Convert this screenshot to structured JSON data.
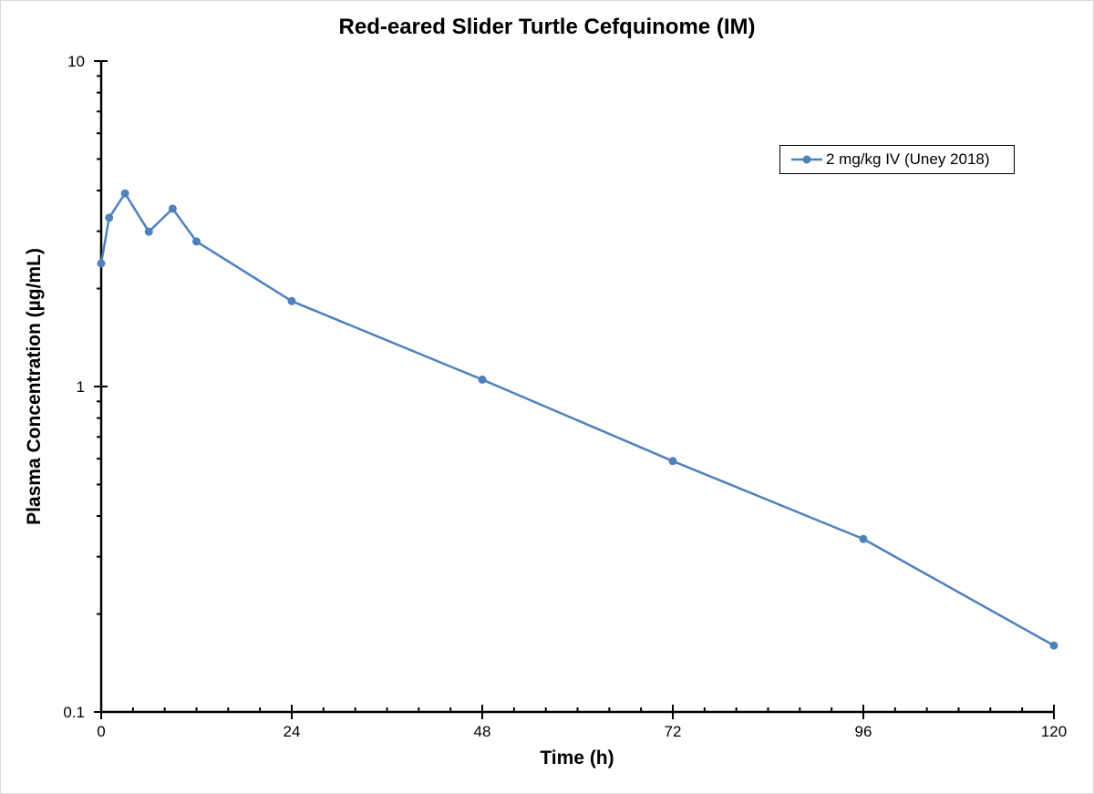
{
  "chart_data": {
    "type": "line",
    "title": "Red-eared Slider Turtle Cefquinome (IM)",
    "xlabel": "Time (h)",
    "ylabel": "Plasma Concentration (µg/mL)",
    "yscale": "log",
    "xlim": [
      0,
      120
    ],
    "ylim": [
      0.1,
      10
    ],
    "xticks": [
      0,
      24,
      48,
      72,
      96,
      120
    ],
    "x_minor_tick_step": 4,
    "yticks": [
      0.1,
      1,
      10
    ],
    "ytick_labels": [
      "0.1",
      "1",
      "10"
    ],
    "grid": false,
    "legend_position": "upper right",
    "series": [
      {
        "name": "2 mg/kg IV (Uney 2018)",
        "color": "#4f81bd",
        "marker": "circle",
        "x": [
          0,
          1,
          3,
          6,
          9,
          12,
          24,
          48,
          72,
          96,
          120
        ],
        "values": [
          2.39,
          3.3,
          3.92,
          2.99,
          3.52,
          2.79,
          1.83,
          1.05,
          0.59,
          0.34,
          0.16
        ]
      }
    ]
  }
}
